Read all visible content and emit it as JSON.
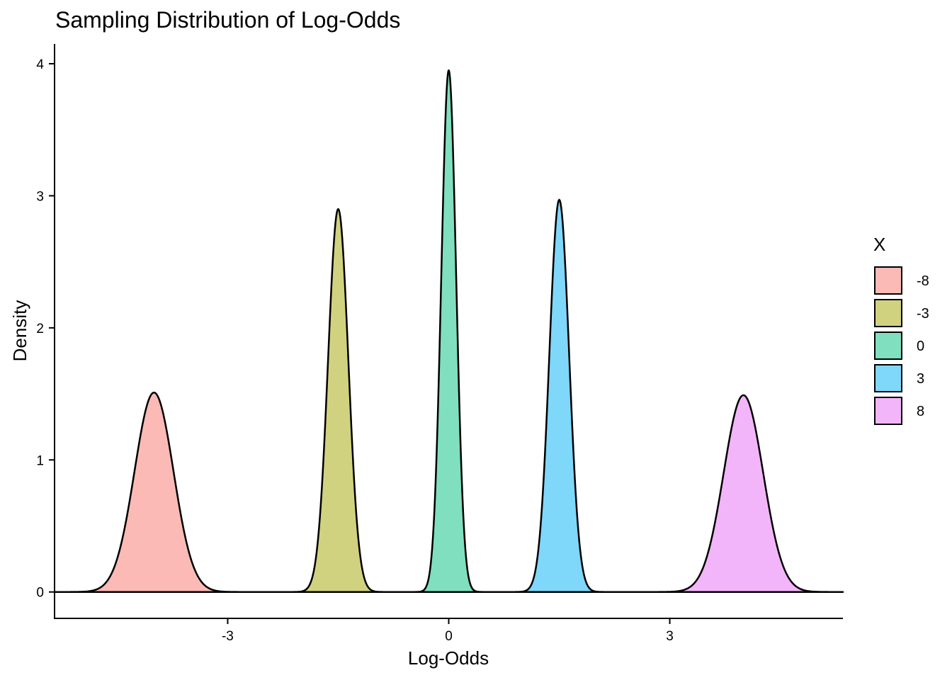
{
  "chart_data": {
    "type": "area",
    "title": "Sampling Distribution of Log-Odds",
    "xlabel": "Log-Odds",
    "ylabel": "Density",
    "xlim": [
      -5.35,
      5.35
    ],
    "ylim": [
      -0.2,
      4.15
    ],
    "x_ticks": [
      -3,
      0,
      3
    ],
    "y_ticks": [
      0,
      1,
      2,
      3,
      4
    ],
    "grid": false,
    "legend": {
      "title": "X",
      "position": "right"
    },
    "series": [
      {
        "name": "-8",
        "color": "#F8766D",
        "mean": -4.0,
        "peak": 1.51,
        "range": [
          -5.35,
          -2.4
        ]
      },
      {
        "name": "-3",
        "color": "#A3A500",
        "mean": -1.5,
        "peak": 2.9,
        "range": [
          -2.6,
          -0.4
        ]
      },
      {
        "name": "0",
        "color": "#00BF7D",
        "mean": 0.0,
        "peak": 3.95,
        "range": [
          -0.75,
          0.75
        ]
      },
      {
        "name": "3",
        "color": "#00B0F6",
        "mean": 1.5,
        "peak": 2.97,
        "range": [
          0.4,
          2.6
        ]
      },
      {
        "name": "8",
        "color": "#E76BF3",
        "mean": 4.0,
        "peak": 1.49,
        "range": [
          2.4,
          5.35
        ]
      }
    ]
  }
}
